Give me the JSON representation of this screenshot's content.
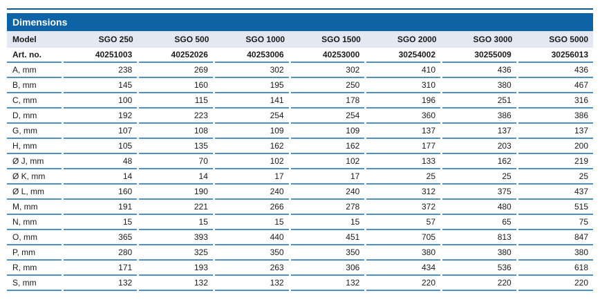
{
  "title_bar": {
    "label": "Dimensions"
  },
  "table": {
    "model_row": {
      "label": "Model",
      "models": [
        "SGO 250",
        "SGO 500",
        "SGO 1000",
        "SGO 1500",
        "SGO 2000",
        "SGO 3000",
        "SGO 5000"
      ]
    },
    "art_row": {
      "label": "Art. no.",
      "values": [
        "40251003",
        "40252026",
        "40253006",
        "40253000",
        "30254002",
        "30255009",
        "30256013"
      ]
    },
    "dimension_rows": [
      {
        "label": "A, mm",
        "values": [
          "238",
          "269",
          "302",
          "302",
          "410",
          "436",
          "436"
        ]
      },
      {
        "label": "B, mm",
        "values": [
          "145",
          "160",
          "195",
          "250",
          "310",
          "380",
          "467"
        ]
      },
      {
        "label": "C, mm",
        "values": [
          "100",
          "115",
          "141",
          "178",
          "196",
          "251",
          "316"
        ]
      },
      {
        "label": "D, mm",
        "values": [
          "192",
          "223",
          "254",
          "254",
          "360",
          "386",
          "386"
        ]
      },
      {
        "label": "G, mm",
        "values": [
          "107",
          "108",
          "109",
          "109",
          "137",
          "137",
          "137"
        ]
      },
      {
        "label": "H, mm",
        "values": [
          "105",
          "135",
          "162",
          "162",
          "177",
          "203",
          "200"
        ]
      },
      {
        "label": "Ø J, mm",
        "values": [
          "48",
          "70",
          "102",
          "102",
          "133",
          "162",
          "219"
        ]
      },
      {
        "label": "Ø K, mm",
        "values": [
          "14",
          "14",
          "17",
          "17",
          "25",
          "25",
          "25"
        ]
      },
      {
        "label": "Ø L, mm",
        "values": [
          "160",
          "190",
          "240",
          "240",
          "312",
          "375",
          "437"
        ]
      },
      {
        "label": "M, mm",
        "values": [
          "191",
          "221",
          "266",
          "278",
          "372",
          "480",
          "515"
        ]
      },
      {
        "label": "N, mm",
        "values": [
          "15",
          "15",
          "15",
          "15",
          "57",
          "65",
          "75"
        ]
      },
      {
        "label": "O, mm",
        "values": [
          "365",
          "393",
          "440",
          "451",
          "705",
          "813",
          "847"
        ]
      },
      {
        "label": "P, mm",
        "values": [
          "280",
          "325",
          "350",
          "350",
          "380",
          "380",
          "380"
        ]
      },
      {
        "label": "R, mm",
        "values": [
          "171",
          "193",
          "263",
          "306",
          "434",
          "536",
          "618"
        ]
      },
      {
        "label": "S, mm",
        "values": [
          "132",
          "132",
          "132",
          "132",
          "220",
          "220",
          "220"
        ]
      }
    ]
  },
  "colors": {
    "header_blue": "#0d63a6",
    "top_rule_blue": "#155a8f",
    "model_row_bg": "#e4e8f2",
    "separator_blue": "#4e8fc5"
  }
}
